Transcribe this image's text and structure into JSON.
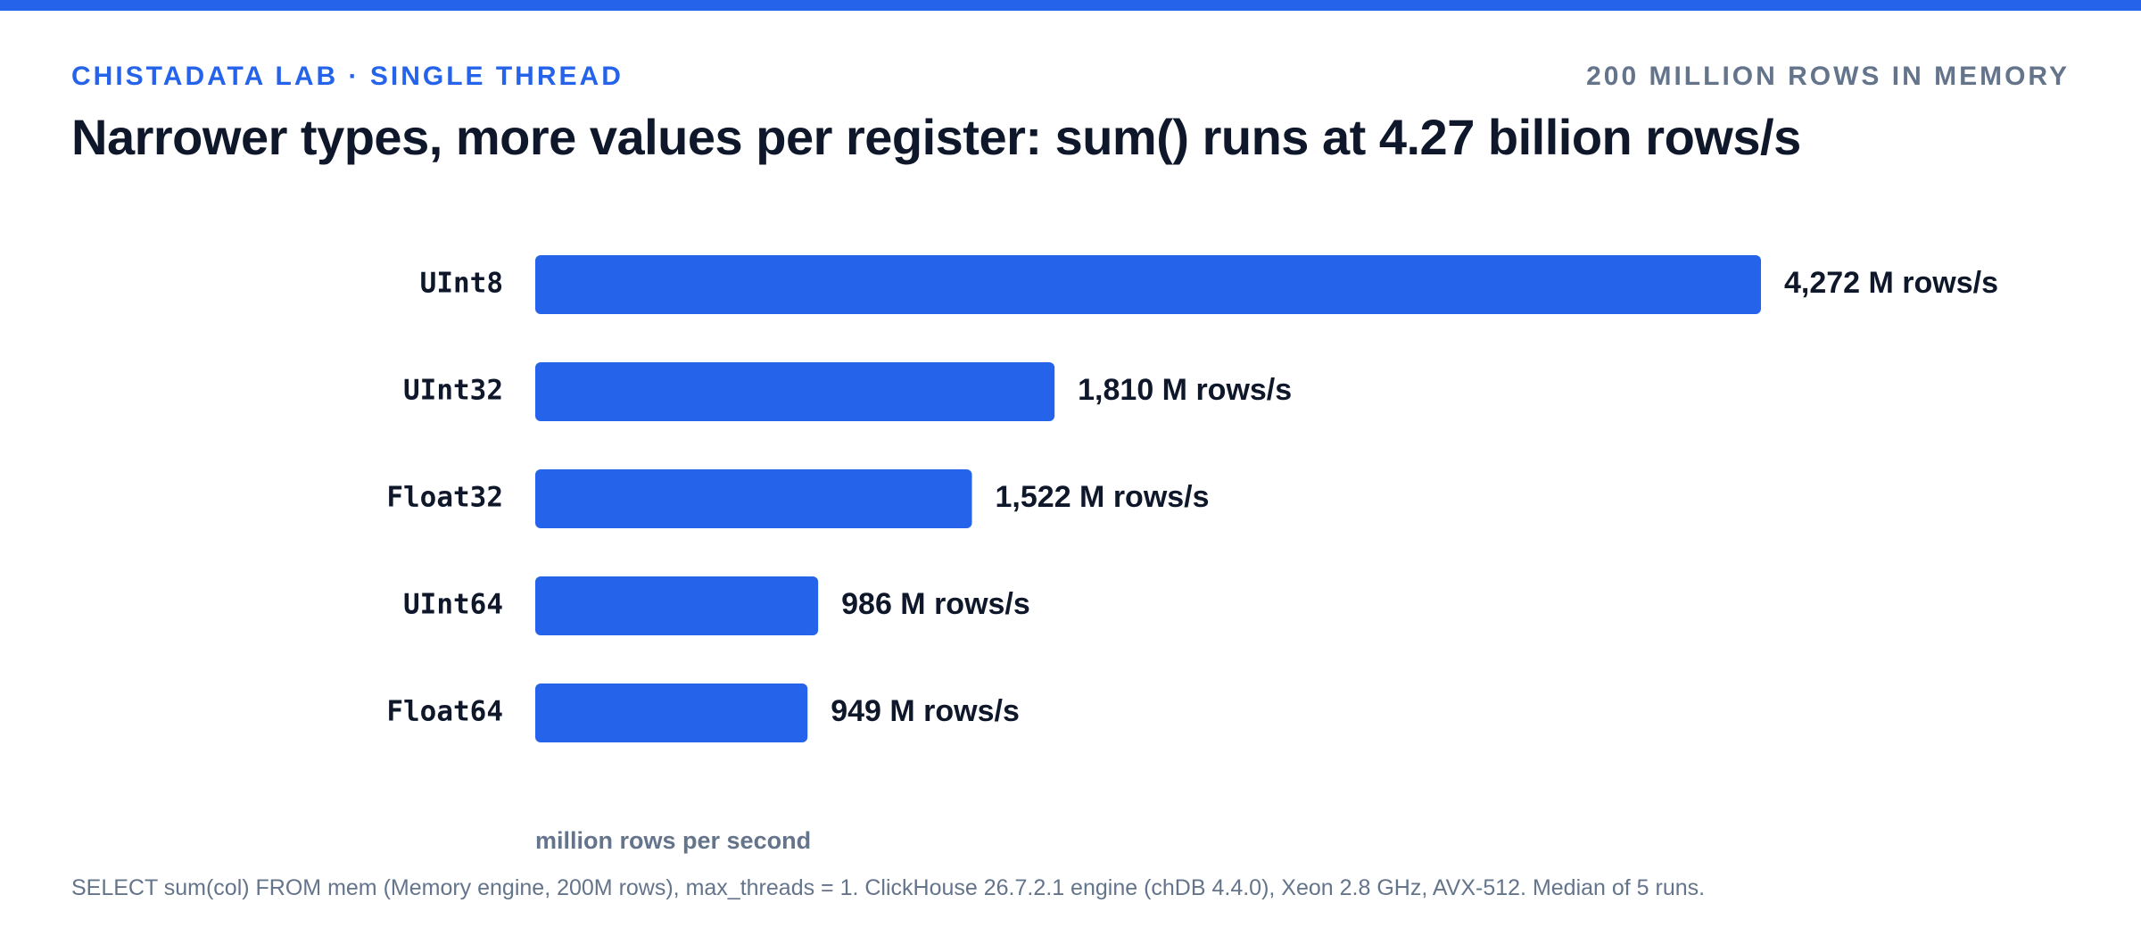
{
  "header": {
    "kicker": "CHISTADATA LAB · SINGLE THREAD",
    "meta": "200 MILLION ROWS IN MEMORY"
  },
  "chart_data": {
    "type": "bar",
    "orientation": "horizontal",
    "title": "Narrower types, more values per register: sum() runs at 4.27 billion rows/s",
    "categories": [
      "UInt8",
      "UInt32",
      "Float32",
      "UInt64",
      "Float64"
    ],
    "values": [
      4272,
      1810,
      1522,
      986,
      949
    ],
    "value_labels": [
      "4,272 M rows/s",
      "1,810 M rows/s",
      "1,522 M rows/s",
      "986 M rows/s",
      "949 M rows/s"
    ],
    "xlabel": "million rows per second",
    "ylabel": "",
    "xlim": [
      0,
      4272
    ],
    "grid": false,
    "bar_color": "#2563eb"
  },
  "footnote": "SELECT sum(col) FROM mem (Memory engine, 200M rows), max_threads = 1. ClickHouse 26.7.2.1 engine (chDB 4.4.0), Xeon 2.8 GHz, AVX-512. Median of 5 runs.",
  "colors": {
    "accent": "#2563eb",
    "text": "#0f172a",
    "muted": "#64748b"
  }
}
